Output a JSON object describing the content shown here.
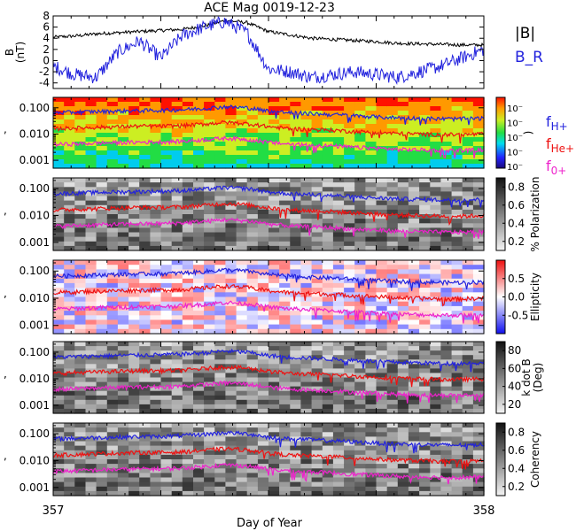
{
  "chart_data": {
    "type": "line",
    "title": "ACE Mag 0019-12-23",
    "xlabel": "Day of Year",
    "x_ticks": [
      "357",
      "358"
    ],
    "xlim": [
      357,
      358
    ],
    "panels": [
      {
        "id": "field",
        "ylabel": "B\n(nT)",
        "ylim": [
          -5,
          8
        ],
        "y_ticks": [
          "8",
          "6",
          "4",
          "2",
          "0",
          "-2",
          "-4"
        ],
        "y_tick_values": [
          8,
          6,
          4,
          2,
          0,
          -2,
          -4
        ],
        "legend": [
          {
            "name": "|B|",
            "color": "#000000"
          },
          {
            "name": "B_R",
            "color": "#2222dd"
          }
        ],
        "series": [
          {
            "name": "|B|",
            "color": "#000000",
            "x": [
              357.0,
              357.05,
              357.1,
              357.15,
              357.2,
              357.25,
              357.3,
              357.35,
              357.4,
              357.45,
              357.5,
              357.55,
              357.6,
              357.65,
              357.7,
              357.75,
              357.8,
              357.85,
              357.9,
              357.95,
              358.0
            ],
            "y": [
              4.2,
              4.4,
              4.8,
              5.0,
              5.2,
              5.4,
              5.6,
              6.2,
              7.2,
              6.8,
              5.2,
              4.6,
              4.0,
              3.8,
              3.6,
              3.4,
              3.1,
              3.0,
              2.9,
              2.8,
              2.8
            ]
          },
          {
            "name": "B_R",
            "color": "#2222dd",
            "x": [
              357.0,
              357.05,
              357.1,
              357.15,
              357.2,
              357.25,
              357.3,
              357.35,
              357.4,
              357.45,
              357.5,
              357.55,
              357.6,
              357.65,
              357.7,
              357.75,
              357.8,
              357.85,
              357.9,
              357.95,
              358.0
            ],
            "y": [
              -1.0,
              -2.5,
              -3.0,
              1.5,
              3.5,
              0.5,
              4.5,
              6.0,
              7.0,
              5.0,
              -1.5,
              -2.0,
              -3.0,
              -2.5,
              -2.0,
              -2.5,
              -3.0,
              -2.0,
              -1.0,
              0.5,
              2.0
            ]
          }
        ]
      },
      {
        "id": "power",
        "colorbar": "rainbow",
        "colorbar_ticks": [
          "10⁻",
          "10⁻",
          "10⁻",
          "10⁻",
          "10⁻"
        ],
        "colorbar_label": ")"
      },
      {
        "id": "polarization",
        "colorbar": "grey",
        "colorbar_label": "% Polarization",
        "colorbar_ticks": [
          "0.8",
          "0.6",
          "0.4",
          "0.2"
        ],
        "colorbar_tick_values": [
          0.8,
          0.6,
          0.4,
          0.2
        ],
        "colorbar_range": [
          0.1,
          0.9
        ]
      },
      {
        "id": "ellipticity",
        "colorbar": "bwr",
        "colorbar_label": "Ellipticity",
        "colorbar_ticks": [
          "0.5",
          "0.0",
          "-0.5"
        ],
        "colorbar_tick_values": [
          0.5,
          0.0,
          -0.5
        ],
        "colorbar_range": [
          -1,
          1
        ]
      },
      {
        "id": "kdotb",
        "colorbar": "grey",
        "colorbar_label": "k dot B\n(Deg)",
        "colorbar_ticks": [
          "80",
          "60",
          "40",
          "20"
        ],
        "colorbar_tick_values": [
          80,
          60,
          40,
          20
        ],
        "colorbar_range": [
          10,
          90
        ]
      },
      {
        "id": "coherency",
        "colorbar": "grey",
        "colorbar_label": "Coherency",
        "colorbar_ticks": [
          "0.8",
          "0.6",
          "0.4",
          "0.2"
        ],
        "colorbar_tick_values": [
          0.8,
          0.6,
          0.4,
          0.2
        ],
        "colorbar_range": [
          0.1,
          0.9
        ]
      }
    ],
    "frequency_axis": {
      "scale": "log",
      "ylim": [
        0.0005,
        0.25
      ],
      "y_ticks": [
        "0.100",
        "0.010",
        "0.001"
      ],
      "y_tick_values": [
        0.1,
        0.01,
        0.001
      ]
    },
    "gyro_lines": [
      {
        "name": "f_H+",
        "color": "#2222dd",
        "x": [
          357.0,
          357.05,
          357.1,
          357.15,
          357.2,
          357.25,
          357.3,
          357.35,
          357.4,
          357.45,
          357.5,
          357.55,
          357.6,
          357.65,
          357.7,
          357.75,
          357.8,
          357.85,
          357.9,
          357.95,
          358.0
        ],
        "y": [
          0.065,
          0.068,
          0.072,
          0.075,
          0.078,
          0.08,
          0.085,
          0.095,
          0.11,
          0.1,
          0.075,
          0.065,
          0.06,
          0.055,
          0.05,
          0.045,
          0.042,
          0.04,
          0.038,
          0.038,
          0.04
        ]
      },
      {
        "name": "f_He+",
        "color": "#ee1111",
        "x": [
          357.0,
          357.05,
          357.1,
          357.15,
          357.2,
          357.25,
          357.3,
          357.35,
          357.4,
          357.45,
          357.5,
          357.55,
          357.6,
          357.65,
          357.7,
          357.75,
          357.8,
          357.85,
          357.9,
          357.95,
          358.0
        ],
        "y": [
          0.016,
          0.017,
          0.018,
          0.019,
          0.02,
          0.02,
          0.021,
          0.024,
          0.028,
          0.025,
          0.019,
          0.016,
          0.015,
          0.014,
          0.0125,
          0.0115,
          0.0105,
          0.01,
          0.0095,
          0.0095,
          0.01
        ]
      },
      {
        "name": "f_O+",
        "color": "#ee22cc",
        "x": [
          357.0,
          357.05,
          357.1,
          357.15,
          357.2,
          357.25,
          357.3,
          357.35,
          357.4,
          357.45,
          357.5,
          357.55,
          357.6,
          357.65,
          357.7,
          357.75,
          357.8,
          357.85,
          357.9,
          357.95,
          358.0
        ],
        "y": [
          0.004,
          0.0042,
          0.0045,
          0.0047,
          0.0049,
          0.005,
          0.0053,
          0.006,
          0.007,
          0.0063,
          0.0048,
          0.0041,
          0.0038,
          0.0035,
          0.0031,
          0.0029,
          0.0026,
          0.0025,
          0.0024,
          0.0024,
          0.0025
        ]
      }
    ],
    "gyro_legend": [
      {
        "name": "f",
        "sub": "H+",
        "color": "#2222dd"
      },
      {
        "name": "f",
        "sub": "He+",
        "color": "#ee1111"
      },
      {
        "name": "f",
        "sub": "0+",
        "color": "#ee22cc"
      }
    ],
    "grid": false
  }
}
